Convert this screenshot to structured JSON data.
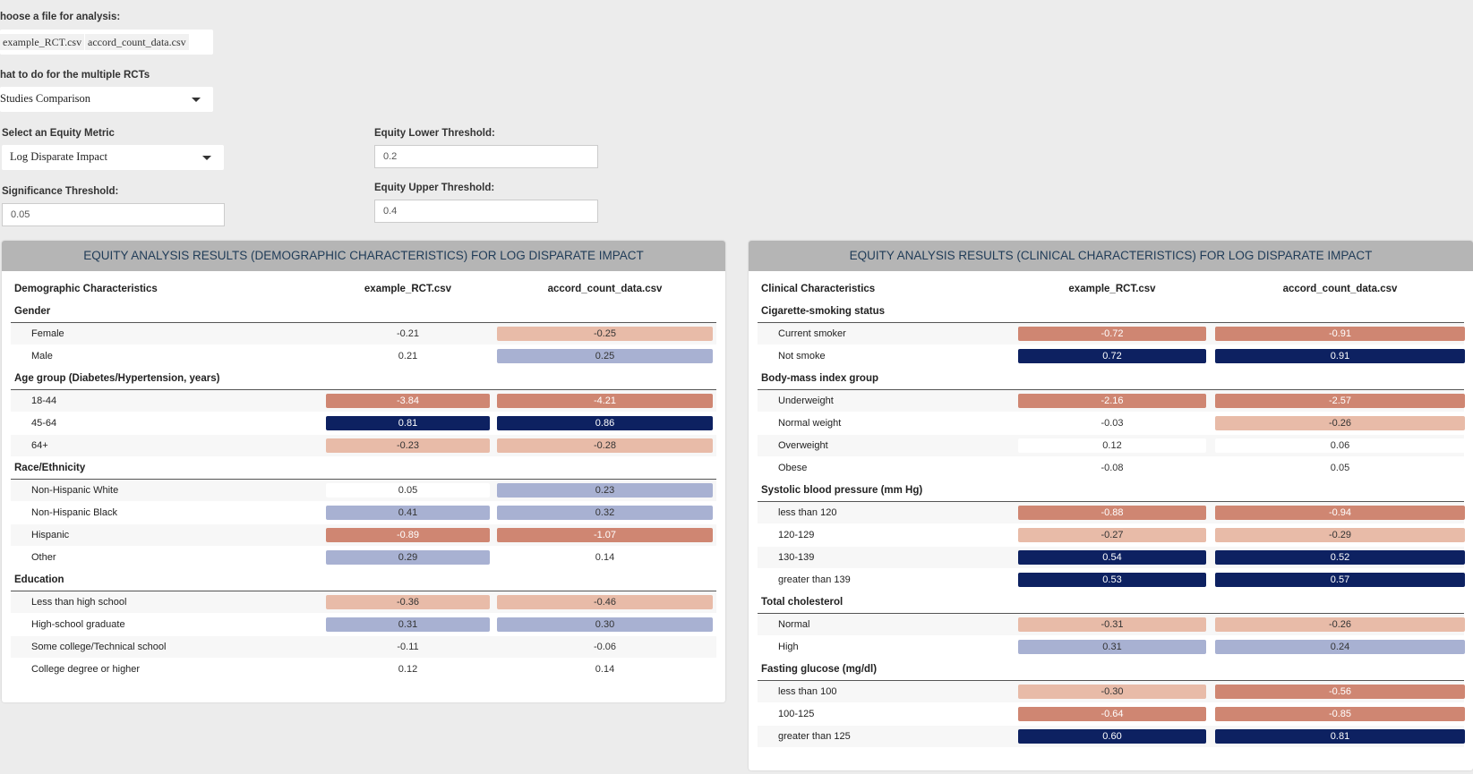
{
  "controls": {
    "file_label": "hoose a file for analysis:",
    "files": [
      "example_RCT.csv",
      "accord_count_data.csv"
    ],
    "multi_label": "hat to do for the multiple RCTs",
    "multi_value": "Studies Comparison",
    "metric_label": "Select an Equity Metric",
    "metric_value": "Log Disparate Impact",
    "sig_label": "Significance Threshold:",
    "sig_value": "0.05",
    "lower_label": "Equity Lower Threshold:",
    "lower_value": "0.2",
    "upper_label": "Equity Upper Threshold:",
    "upper_value": "0.4"
  },
  "colors": {
    "strong_neg": "#cf8672",
    "light_neg": "#e8bba8",
    "strong_pos": "#0d2161",
    "light_pos": "#a8b1d2",
    "neutral": "#ffffff"
  },
  "demographic": {
    "title": "EQUITY ANALYSIS RESULTS (DEMOGRAPHIC CHARACTERISTICS) FOR LOG DISPARATE IMPACT",
    "header": [
      "Demographic Characteristics",
      "example_RCT.csv",
      "accord_count_data.csv"
    ],
    "groups": [
      {
        "name": "Gender",
        "rows": [
          {
            "label": "Female",
            "values": [
              "-0.21",
              "-0.25"
            ],
            "shade": [
              "n",
              "ln"
            ]
          },
          {
            "label": "Male",
            "values": [
              "0.21",
              "0.25"
            ],
            "shade": [
              "w",
              "lp"
            ]
          }
        ]
      },
      {
        "name": "Age group (Diabetes/Hypertension, years)",
        "rows": [
          {
            "label": "18-44",
            "values": [
              "-3.84",
              "-4.21"
            ],
            "shade": [
              "sn",
              "sn"
            ]
          },
          {
            "label": "45-64",
            "values": [
              "0.81",
              "0.86"
            ],
            "shade": [
              "sp",
              "sp"
            ]
          },
          {
            "label": "64+",
            "values": [
              "-0.23",
              "-0.28"
            ],
            "shade": [
              "ln",
              "ln"
            ]
          }
        ]
      },
      {
        "name": "Race/Ethnicity",
        "rows": [
          {
            "label": "Non-Hispanic White",
            "values": [
              "0.05",
              "0.23"
            ],
            "shade": [
              "w",
              "lp"
            ]
          },
          {
            "label": "Non-Hispanic Black",
            "values": [
              "0.41",
              "0.32"
            ],
            "shade": [
              "lp",
              "lp"
            ]
          },
          {
            "label": "Hispanic",
            "values": [
              "-0.89",
              "-1.07"
            ],
            "shade": [
              "sn",
              "sn"
            ]
          },
          {
            "label": "Other",
            "values": [
              "0.29",
              "0.14"
            ],
            "shade": [
              "lp",
              "n"
            ]
          }
        ]
      },
      {
        "name": "Education",
        "rows": [
          {
            "label": "Less than high school",
            "values": [
              "-0.36",
              "-0.46"
            ],
            "shade": [
              "ln",
              "ln"
            ]
          },
          {
            "label": "High-school graduate",
            "values": [
              "0.31",
              "0.30"
            ],
            "shade": [
              "lp",
              "lp"
            ]
          },
          {
            "label": "Some college/Technical school",
            "values": [
              "-0.11",
              "-0.06"
            ],
            "shade": [
              "n",
              "n"
            ]
          },
          {
            "label": "College degree or higher",
            "values": [
              "0.12",
              "0.14"
            ],
            "shade": [
              "w",
              "w"
            ]
          }
        ]
      }
    ]
  },
  "clinical": {
    "title": "EQUITY ANALYSIS RESULTS (CLINICAL CHARACTERISTICS) FOR LOG DISPARATE IMPACT",
    "header": [
      "Clinical Characteristics",
      "example_RCT.csv",
      "accord_count_data.csv"
    ],
    "groups": [
      {
        "name": "Cigarette-smoking status",
        "rows": [
          {
            "label": "Current smoker",
            "values": [
              "-0.72",
              "-0.91"
            ],
            "shade": [
              "sn",
              "sn"
            ]
          },
          {
            "label": "Not smoke",
            "values": [
              "0.72",
              "0.91"
            ],
            "shade": [
              "sp",
              "sp"
            ]
          }
        ]
      },
      {
        "name": "Body-mass index group",
        "rows": [
          {
            "label": "Underweight",
            "values": [
              "-2.16",
              "-2.57"
            ],
            "shade": [
              "sn",
              "sn"
            ]
          },
          {
            "label": "Normal weight",
            "values": [
              "-0.03",
              "-0.26"
            ],
            "shade": [
              "n",
              "ln"
            ]
          },
          {
            "label": "Overweight",
            "values": [
              "0.12",
              "0.06"
            ],
            "shade": [
              "w",
              "w"
            ]
          },
          {
            "label": "Obese",
            "values": [
              "-0.08",
              "0.05"
            ],
            "shade": [
              "n",
              "n"
            ]
          }
        ]
      },
      {
        "name": "Systolic blood pressure (mm Hg)",
        "rows": [
          {
            "label": "less than 120",
            "values": [
              "-0.88",
              "-0.94"
            ],
            "shade": [
              "sn",
              "sn"
            ]
          },
          {
            "label": "120-129",
            "values": [
              "-0.27",
              "-0.29"
            ],
            "shade": [
              "ln",
              "ln"
            ]
          },
          {
            "label": "130-139",
            "values": [
              "0.54",
              "0.52"
            ],
            "shade": [
              "sp",
              "sp"
            ]
          },
          {
            "label": "greater than 139",
            "values": [
              "0.53",
              "0.57"
            ],
            "shade": [
              "sp",
              "sp"
            ]
          }
        ]
      },
      {
        "name": "Total cholesterol",
        "rows": [
          {
            "label": "Normal",
            "values": [
              "-0.31",
              "-0.26"
            ],
            "shade": [
              "ln",
              "ln"
            ]
          },
          {
            "label": "High",
            "values": [
              "0.31",
              "0.24"
            ],
            "shade": [
              "lp",
              "lp"
            ]
          }
        ]
      },
      {
        "name": "Fasting glucose (mg/dl)",
        "rows": [
          {
            "label": "less than 100",
            "values": [
              "-0.30",
              "-0.56"
            ],
            "shade": [
              "ln",
              "sn"
            ]
          },
          {
            "label": "100-125",
            "values": [
              "-0.64",
              "-0.85"
            ],
            "shade": [
              "sn",
              "sn"
            ]
          },
          {
            "label": "greater than 125",
            "values": [
              "0.60",
              "0.81"
            ],
            "shade": [
              "sp",
              "sp"
            ]
          }
        ]
      }
    ]
  }
}
